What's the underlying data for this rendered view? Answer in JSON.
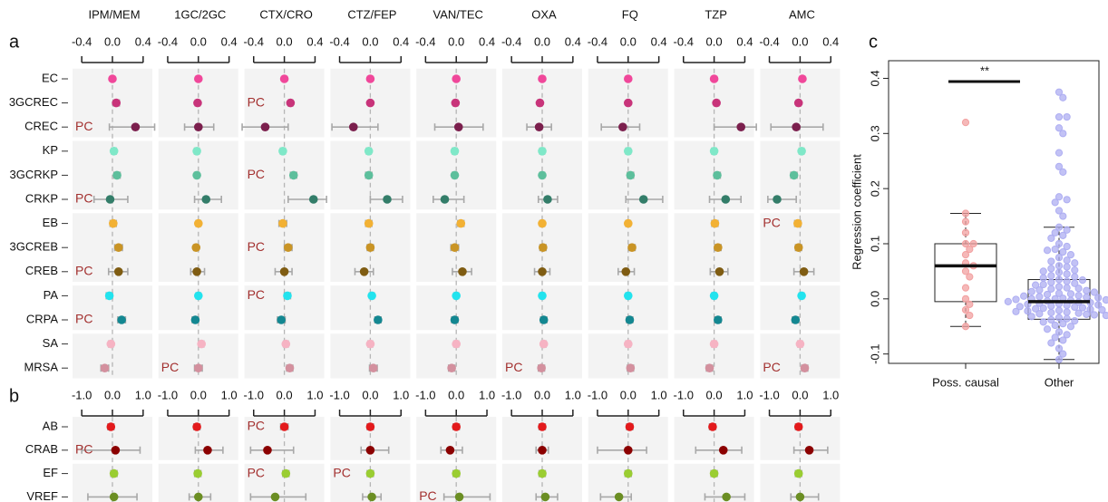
{
  "chart_data": [
    {
      "type": "forest",
      "panel": "a",
      "rows": [
        "EC",
        "3GCREC",
        "CREC",
        "KP",
        "3GCRKP",
        "CRKP",
        "EB",
        "3GCREB",
        "CREB",
        "PA",
        "CRPA",
        "SA",
        "MRSA"
      ],
      "colors": [
        "#f0479a",
        "#c8347a",
        "#7b1f4d",
        "#7fe8c8",
        "#5dbf9c",
        "#337d69",
        "#f2b134",
        "#c99425",
        "#7f5c12",
        "#22e3ee",
        "#138791",
        "#f6b3c3",
        "#d3909e"
      ],
      "xlim": [
        -0.52,
        0.52
      ],
      "xticks": [
        -0.4,
        {
          "value": 0,
          "label": "0.0"
        },
        0.4
      ],
      "columns": [
        {
          "name": "IPM/MEM",
          "values": [
            0,
            0.05,
            0.3,
            0.02,
            0.06,
            -0.03,
            0.01,
            0.08,
            0.08,
            -0.04,
            0.12,
            -0.02,
            -0.1
          ],
          "lo": [
            -0.02,
            0.01,
            -0.04,
            -0.01,
            0.02,
            -0.24,
            -0.03,
            0.03,
            -0.05,
            -0.08,
            0.07,
            -0.05,
            -0.15
          ],
          "hi": [
            0.02,
            0.09,
            0.55,
            0.05,
            0.1,
            0.2,
            0.05,
            0.13,
            0.2,
            0,
            0.17,
            0.01,
            -0.05
          ],
          "labels": [
            null,
            null,
            "PC",
            null,
            null,
            "PC",
            null,
            null,
            "PC",
            null,
            "PC",
            null,
            null
          ]
        },
        {
          "name": "1GC/2GC",
          "values": [
            0,
            -0.01,
            0,
            -0.02,
            -0.02,
            0.1,
            0,
            -0.03,
            -0.02,
            0,
            -0.04,
            0.04,
            0
          ],
          "lo": [
            -0.02,
            -0.04,
            -0.18,
            -0.05,
            -0.05,
            -0.05,
            -0.03,
            -0.06,
            -0.1,
            -0.03,
            -0.08,
            0.01,
            -0.05
          ],
          "hi": [
            0.02,
            0.02,
            0.2,
            0.01,
            0.01,
            0.3,
            0.03,
            0,
            0.08,
            0.03,
            0,
            0.07,
            0.05
          ],
          "labels": [
            null,
            null,
            null,
            null,
            null,
            null,
            null,
            null,
            null,
            null,
            null,
            null,
            "PC"
          ]
        },
        {
          "name": "CTX/CRO",
          "values": [
            0,
            0.08,
            -0.25,
            -0.02,
            0.12,
            0.38,
            -0.02,
            0.05,
            0,
            0.04,
            -0.04,
            0.02,
            0.07
          ],
          "lo": [
            -0.02,
            0.05,
            -0.55,
            -0.05,
            0.08,
            0.05,
            -0.07,
            0,
            -0.12,
            0,
            -0.09,
            -0.01,
            0.03
          ],
          "hi": [
            0.02,
            0.11,
            0.05,
            0.01,
            0.16,
            0.55,
            0.03,
            0.1,
            0.1,
            0.08,
            0.01,
            0.05,
            0.11
          ],
          "labels": [
            null,
            "PC",
            null,
            null,
            "PC",
            null,
            null,
            "PC",
            null,
            "PC",
            null,
            null,
            null
          ]
        },
        {
          "name": "CTZ/FEP",
          "values": [
            0,
            0,
            -0.22,
            -0.02,
            -0.02,
            0.22,
            -0.02,
            0,
            -0.08,
            0.02,
            0.1,
            0,
            0.04
          ],
          "lo": [
            -0.02,
            -0.02,
            -0.5,
            -0.05,
            -0.06,
            0,
            -0.06,
            -0.04,
            -0.2,
            -0.01,
            0.06,
            -0.03,
            -0.01
          ],
          "hi": [
            0.02,
            0.02,
            0.1,
            0.01,
            0.02,
            0.42,
            0.02,
            0.04,
            0.04,
            0.05,
            0.14,
            0.03,
            0.09
          ],
          "labels": [
            null,
            null,
            null,
            null,
            null,
            null,
            null,
            null,
            null,
            null,
            null,
            null,
            null
          ]
        },
        {
          "name": "VAN/TEC",
          "values": [
            0,
            -0.01,
            0.03,
            -0.02,
            -0.02,
            -0.15,
            0.06,
            -0.02,
            0.08,
            0,
            -0.02,
            0,
            -0.06
          ],
          "lo": [
            -0.02,
            -0.04,
            -0.28,
            -0.05,
            -0.05,
            -0.3,
            0.02,
            -0.07,
            -0.05,
            -0.03,
            -0.06,
            -0.03,
            -0.1
          ],
          "hi": [
            0.02,
            0.02,
            0.35,
            0.01,
            0.01,
            0.1,
            0.1,
            0.03,
            0.2,
            0.03,
            0.02,
            0.03,
            -0.02
          ],
          "labels": [
            null,
            null,
            null,
            null,
            null,
            null,
            null,
            null,
            null,
            null,
            null,
            null,
            null
          ]
        },
        {
          "name": "OXA",
          "values": [
            0,
            -0.03,
            -0.04,
            0,
            0,
            0.07,
            0,
            0.01,
            0,
            0,
            0.02,
            0.02,
            -0.01
          ],
          "lo": [
            -0.02,
            -0.06,
            -0.2,
            -0.03,
            -0.03,
            -0.05,
            -0.03,
            -0.03,
            -0.1,
            -0.03,
            -0.02,
            -0.01,
            -0.05
          ],
          "hi": [
            0.02,
            0,
            0.12,
            0.03,
            0.03,
            0.2,
            0.03,
            0.05,
            0.1,
            0.03,
            0.06,
            0.05,
            0.03
          ],
          "labels": [
            null,
            null,
            null,
            null,
            null,
            null,
            null,
            null,
            null,
            null,
            null,
            null,
            "PC"
          ]
        },
        {
          "name": "FQ",
          "values": [
            0,
            0,
            -0.07,
            0,
            0.03,
            0.2,
            0,
            0.05,
            -0.03,
            0,
            0.02,
            0,
            0.03
          ],
          "lo": [
            -0.02,
            -0.02,
            -0.35,
            -0.03,
            -0.01,
            -0.03,
            -0.03,
            0.01,
            -0.13,
            -0.03,
            -0.02,
            -0.03,
            -0.01
          ],
          "hi": [
            0.02,
            0.02,
            0.15,
            0.03,
            0.07,
            0.45,
            0.03,
            0.09,
            0.08,
            0.03,
            0.06,
            0.03,
            0.07
          ],
          "labels": [
            null,
            null,
            null,
            null,
            null,
            null,
            null,
            null,
            null,
            null,
            null,
            null,
            null
          ]
        },
        {
          "name": "TZP",
          "values": [
            0,
            0.03,
            0.35,
            0,
            0.04,
            0.15,
            0.01,
            0.05,
            0.07,
            0,
            0.05,
            0,
            -0.06
          ],
          "lo": [
            -0.02,
            0,
            0,
            -0.03,
            0,
            -0.06,
            -0.03,
            0.01,
            -0.05,
            -0.03,
            0.01,
            -0.03,
            -0.1
          ],
          "hi": [
            0.02,
            0.06,
            0.55,
            0.03,
            0.08,
            0.35,
            0.05,
            0.09,
            0.18,
            0.03,
            0.09,
            0.03,
            -0.02
          ],
          "labels": [
            null,
            null,
            null,
            null,
            null,
            null,
            null,
            null,
            null,
            null,
            null,
            null,
            null
          ]
        },
        {
          "name": "AMC",
          "values": [
            0.03,
            -0.02,
            -0.05,
            0.02,
            -0.08,
            -0.3,
            -0.03,
            -0.02,
            0.05,
            0.02,
            -0.06,
            0,
            0.06
          ],
          "lo": [
            0.01,
            -0.05,
            -0.38,
            -0.01,
            -0.12,
            -0.42,
            -0.07,
            -0.06,
            -0.08,
            -0.01,
            -0.1,
            -0.03,
            0.02
          ],
          "hi": [
            0.05,
            0.01,
            0.3,
            0.05,
            -0.04,
            -0.05,
            0.01,
            0.02,
            0.18,
            0.05,
            -0.02,
            0.03,
            0.1
          ],
          "labels": [
            null,
            null,
            null,
            null,
            null,
            null,
            "PC",
            null,
            null,
            null,
            null,
            null,
            "PC"
          ]
        }
      ]
    },
    {
      "type": "forest",
      "panel": "b",
      "rows": [
        "AB",
        "CRAB",
        "EF",
        "VREF"
      ],
      "colors": [
        "#e31a1c",
        "#8b0000",
        "#9acd32",
        "#6b8e23"
      ],
      "xlim": [
        -1.3,
        1.3
      ],
      "xticks": [
        {
          "value": -1,
          "label": "-1.0"
        },
        {
          "value": 0,
          "label": "0.0"
        },
        {
          "value": 1,
          "label": "1.0"
        }
      ],
      "columns": [
        {
          "values": [
            -0.05,
            0.1,
            0.05,
            0.05
          ],
          "lo": [
            -0.15,
            -1.0,
            -0.05,
            -0.8
          ],
          "hi": [
            0.05,
            0.9,
            0.15,
            0.8
          ],
          "labels": [
            null,
            "PC",
            null,
            null
          ]
        },
        {
          "values": [
            -0.05,
            0.3,
            -0.02,
            0
          ],
          "lo": [
            -0.15,
            -0.1,
            -0.12,
            -0.3
          ],
          "hi": [
            0.05,
            0.8,
            0.08,
            0.4
          ],
          "labels": [
            null,
            null,
            null,
            null
          ]
        },
        {
          "values": [
            0,
            -0.55,
            0.05,
            -0.3
          ],
          "lo": [
            -0.12,
            -1.1,
            -0.05,
            -1.1
          ],
          "hi": [
            0.12,
            0.3,
            0.15,
            0.7
          ],
          "labels": [
            "PC",
            null,
            "PC",
            null
          ]
        },
        {
          "values": [
            0,
            0,
            0,
            0.05
          ],
          "lo": [
            -0.1,
            -0.3,
            -0.1,
            -0.25
          ],
          "hi": [
            0.1,
            0.6,
            0.1,
            0.35
          ],
          "labels": [
            null,
            null,
            "PC",
            null
          ]
        },
        {
          "values": [
            0,
            -0.2,
            0,
            0.1
          ],
          "lo": [
            -0.1,
            -0.5,
            -0.1,
            -0.4
          ],
          "hi": [
            0.1,
            0.2,
            0.1,
            1.1
          ],
          "labels": [
            null,
            null,
            null,
            "PC"
          ]
        },
        {
          "values": [
            0,
            0,
            0,
            0.1
          ],
          "lo": [
            -0.1,
            -0.2,
            -0.1,
            -0.2
          ],
          "hi": [
            0.1,
            0.2,
            0.1,
            0.5
          ],
          "labels": [
            null,
            null,
            null,
            null
          ]
        },
        {
          "values": [
            0.05,
            0,
            0,
            -0.3
          ],
          "lo": [
            -0.05,
            -1.0,
            -0.1,
            -0.9
          ],
          "hi": [
            0.15,
            0.6,
            0.1,
            0.1
          ],
          "labels": [
            null,
            null,
            null,
            null
          ]
        },
        {
          "values": [
            -0.05,
            0.3,
            0,
            0.4
          ],
          "lo": [
            -0.15,
            -0.6,
            -0.1,
            -0.3
          ],
          "hi": [
            0.05,
            0.9,
            0.1,
            1.0
          ],
          "labels": [
            null,
            null,
            null,
            null
          ]
        },
        {
          "values": [
            -0.05,
            0.3,
            -0.05,
            0
          ],
          "lo": [
            -0.15,
            -0.2,
            -0.15,
            -0.3
          ],
          "hi": [
            0.05,
            0.9,
            0.05,
            0.6
          ],
          "labels": [
            null,
            null,
            null,
            null
          ]
        }
      ]
    },
    {
      "type": "box",
      "panel": "c",
      "ylabel": "Regression coefficient",
      "annotation": "**",
      "ylim": [
        -0.117,
        0.432
      ],
      "yticks": [
        -0.1,
        {
          "value": 0,
          "label": "0.0"
        },
        0.1,
        0.2,
        0.3,
        0.4
      ],
      "series": [
        {
          "name": "Poss. causal",
          "color": "#f2a0a0",
          "box": {
            "whislo": -0.05,
            "q1": -0.005,
            "med": 0.06,
            "q3": 0.1,
            "whishi": 0.155
          },
          "points": [
            0.32,
            0.155,
            0.14,
            0.12,
            0.1,
            0.1,
            0.09,
            0.08,
            0.065,
            0.06,
            0.05,
            0.04,
            0.02,
            0,
            -0.01,
            -0.02,
            -0.03,
            -0.05
          ]
        },
        {
          "name": "Other",
          "color": "#aeaef2",
          "box": {
            "whislo": -0.11,
            "q1": -0.037,
            "med": -0.005,
            "q3": 0.035,
            "whishi": 0.13
          },
          "points": [
            0.375,
            0.365,
            0.33,
            0.33,
            0.31,
            0.3,
            0.265,
            0.24,
            0.23,
            0.185,
            0.18,
            0.175,
            0.16,
            0.15,
            0.13,
            0.125,
            0.12,
            0.115,
            0.11,
            0.1,
            0.095,
            0.09,
            0.088,
            0.085,
            0.08,
            0.075,
            0.07,
            0.068,
            0.065,
            0.06,
            0.058,
            0.055,
            0.052,
            0.05,
            0.048,
            0.045,
            0.042,
            0.04,
            0.038,
            0.035,
            0.034,
            0.032,
            0.03,
            0.028,
            0.026,
            0.025,
            0.022,
            0.02,
            0.019,
            0.018,
            0.016,
            0.015,
            0.013,
            0.012,
            0.01,
            0.009,
            0.008,
            0.006,
            0.005,
            0.004,
            0.003,
            0.002,
            0.001,
            0,
            0,
            -0.001,
            -0.002,
            -0.003,
            -0.004,
            -0.005,
            -0.006,
            -0.007,
            -0.008,
            -0.009,
            -0.01,
            -0.011,
            -0.012,
            -0.013,
            -0.014,
            -0.015,
            -0.016,
            -0.017,
            -0.018,
            -0.019,
            -0.02,
            -0.021,
            -0.022,
            -0.023,
            -0.024,
            -0.025,
            -0.026,
            -0.027,
            -0.028,
            -0.029,
            -0.03,
            -0.032,
            -0.034,
            -0.036,
            -0.038,
            -0.04,
            -0.042,
            -0.045,
            -0.048,
            -0.05,
            -0.055,
            -0.06,
            -0.065,
            -0.07,
            -0.075,
            -0.08,
            -0.09,
            -0.1,
            -0.11
          ]
        }
      ]
    }
  ]
}
